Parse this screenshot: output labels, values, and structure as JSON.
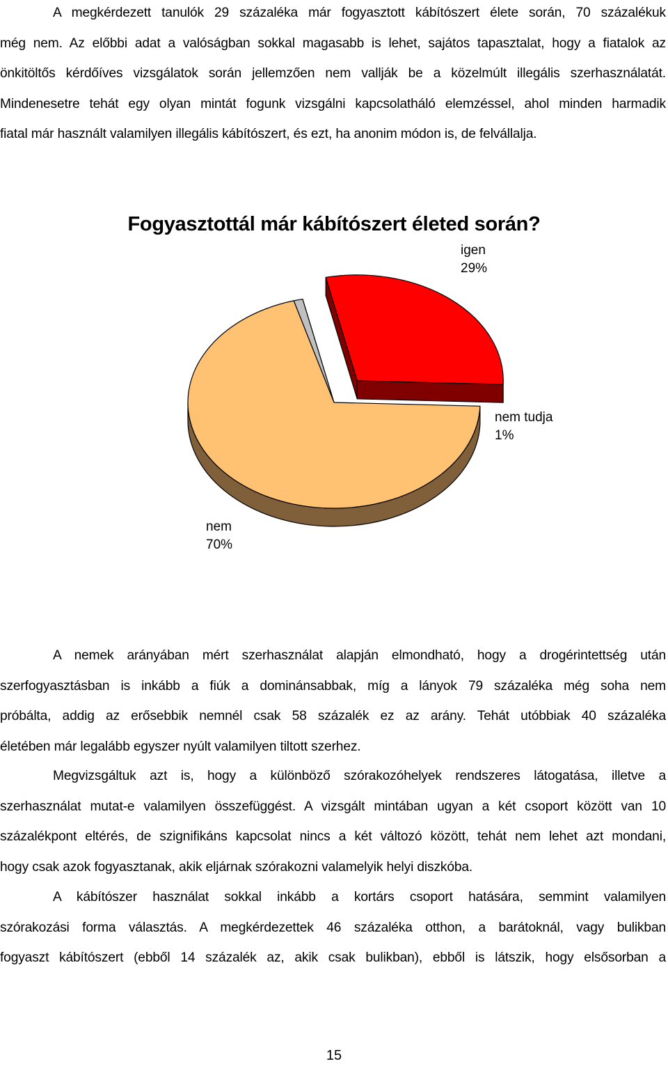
{
  "paragraph1": {
    "lines": [
      "A megkérdezett tanulók 29 százaléka már fogyasztott kábítószert élete során, 70 százalékuk",
      "még nem. Az előbbi adat a valóságban sokkal magasabb is lehet, sajátos tapasztalat, hogy a fiatalok az",
      "önkitöltős kérdőíves vizsgálatok során jellemzően nem vallják be a közelmúlt illegális szerhasználatát.",
      "Mindenesetre tehát egy olyan mintát fogunk vizsgálni kapcsolatháló elemzéssel, ahol minden harmadik",
      "fiatal már használt valamilyen illegális kábítószert, és ezt, ha anonim módon is, de felvállalja."
    ]
  },
  "chart_data": {
    "type": "pie",
    "title": "Fogyasztottál már kábítószert életed során?",
    "slices": [
      {
        "name": "igen",
        "label": "29%",
        "value": 29,
        "color": "#ff0000",
        "side_color": "#800000",
        "exploded": true
      },
      {
        "name": "nem tudja",
        "label": "1%",
        "value": 1,
        "color": "#c0c0c0",
        "side_color": "#606060",
        "exploded": false
      },
      {
        "name": "nem",
        "label": "70%",
        "value": 70,
        "color": "#ffc172",
        "side_color": "#80603a",
        "exploded": false
      }
    ]
  },
  "paragraph2": {
    "lines": [
      "A nemek arányában mért szerhasználat alapján elmondható, hogy a drogérintettség után",
      "szerfogyasztásban is inkább a fiúk a dominánsabbak, míg a lányok 79 százaléka még soha nem",
      "próbálta, addig az erősebbik nemnél csak 58 százalék ez az arány. Tehát utóbbiak 40 százaléka",
      "életében már legalább egyszer nyúlt valamilyen tiltott szerhez."
    ]
  },
  "paragraph3": {
    "lines": [
      "Megvizsgáltuk azt is, hogy a különböző szórakozóhelyek rendszeres látogatása, illetve a",
      "szerhasználat mutat-e valamilyen összefüggést. A vizsgált mintában ugyan a két csoport között van 10",
      "százalékpont eltérés, de szignifikáns kapcsolat nincs a két változó között, tehát nem lehet azt mondani,",
      "hogy csak azok fogyasztanak, akik eljárnak szórakozni valamelyik helyi diszkóba."
    ]
  },
  "paragraph4": {
    "lines": [
      "A kábítószer használat sokkal inkább a kortárs csoport hatására, semmint valamilyen",
      "szórakozási forma választás. A megkérdezettek 46 százaléka otthon, a barátoknál, vagy bulikban",
      "fogyaszt kábítószert (ebből 14 százalék az, akik csak bulikban), ebből is látszik, hogy elsősorban a"
    ]
  },
  "page_number": "15"
}
